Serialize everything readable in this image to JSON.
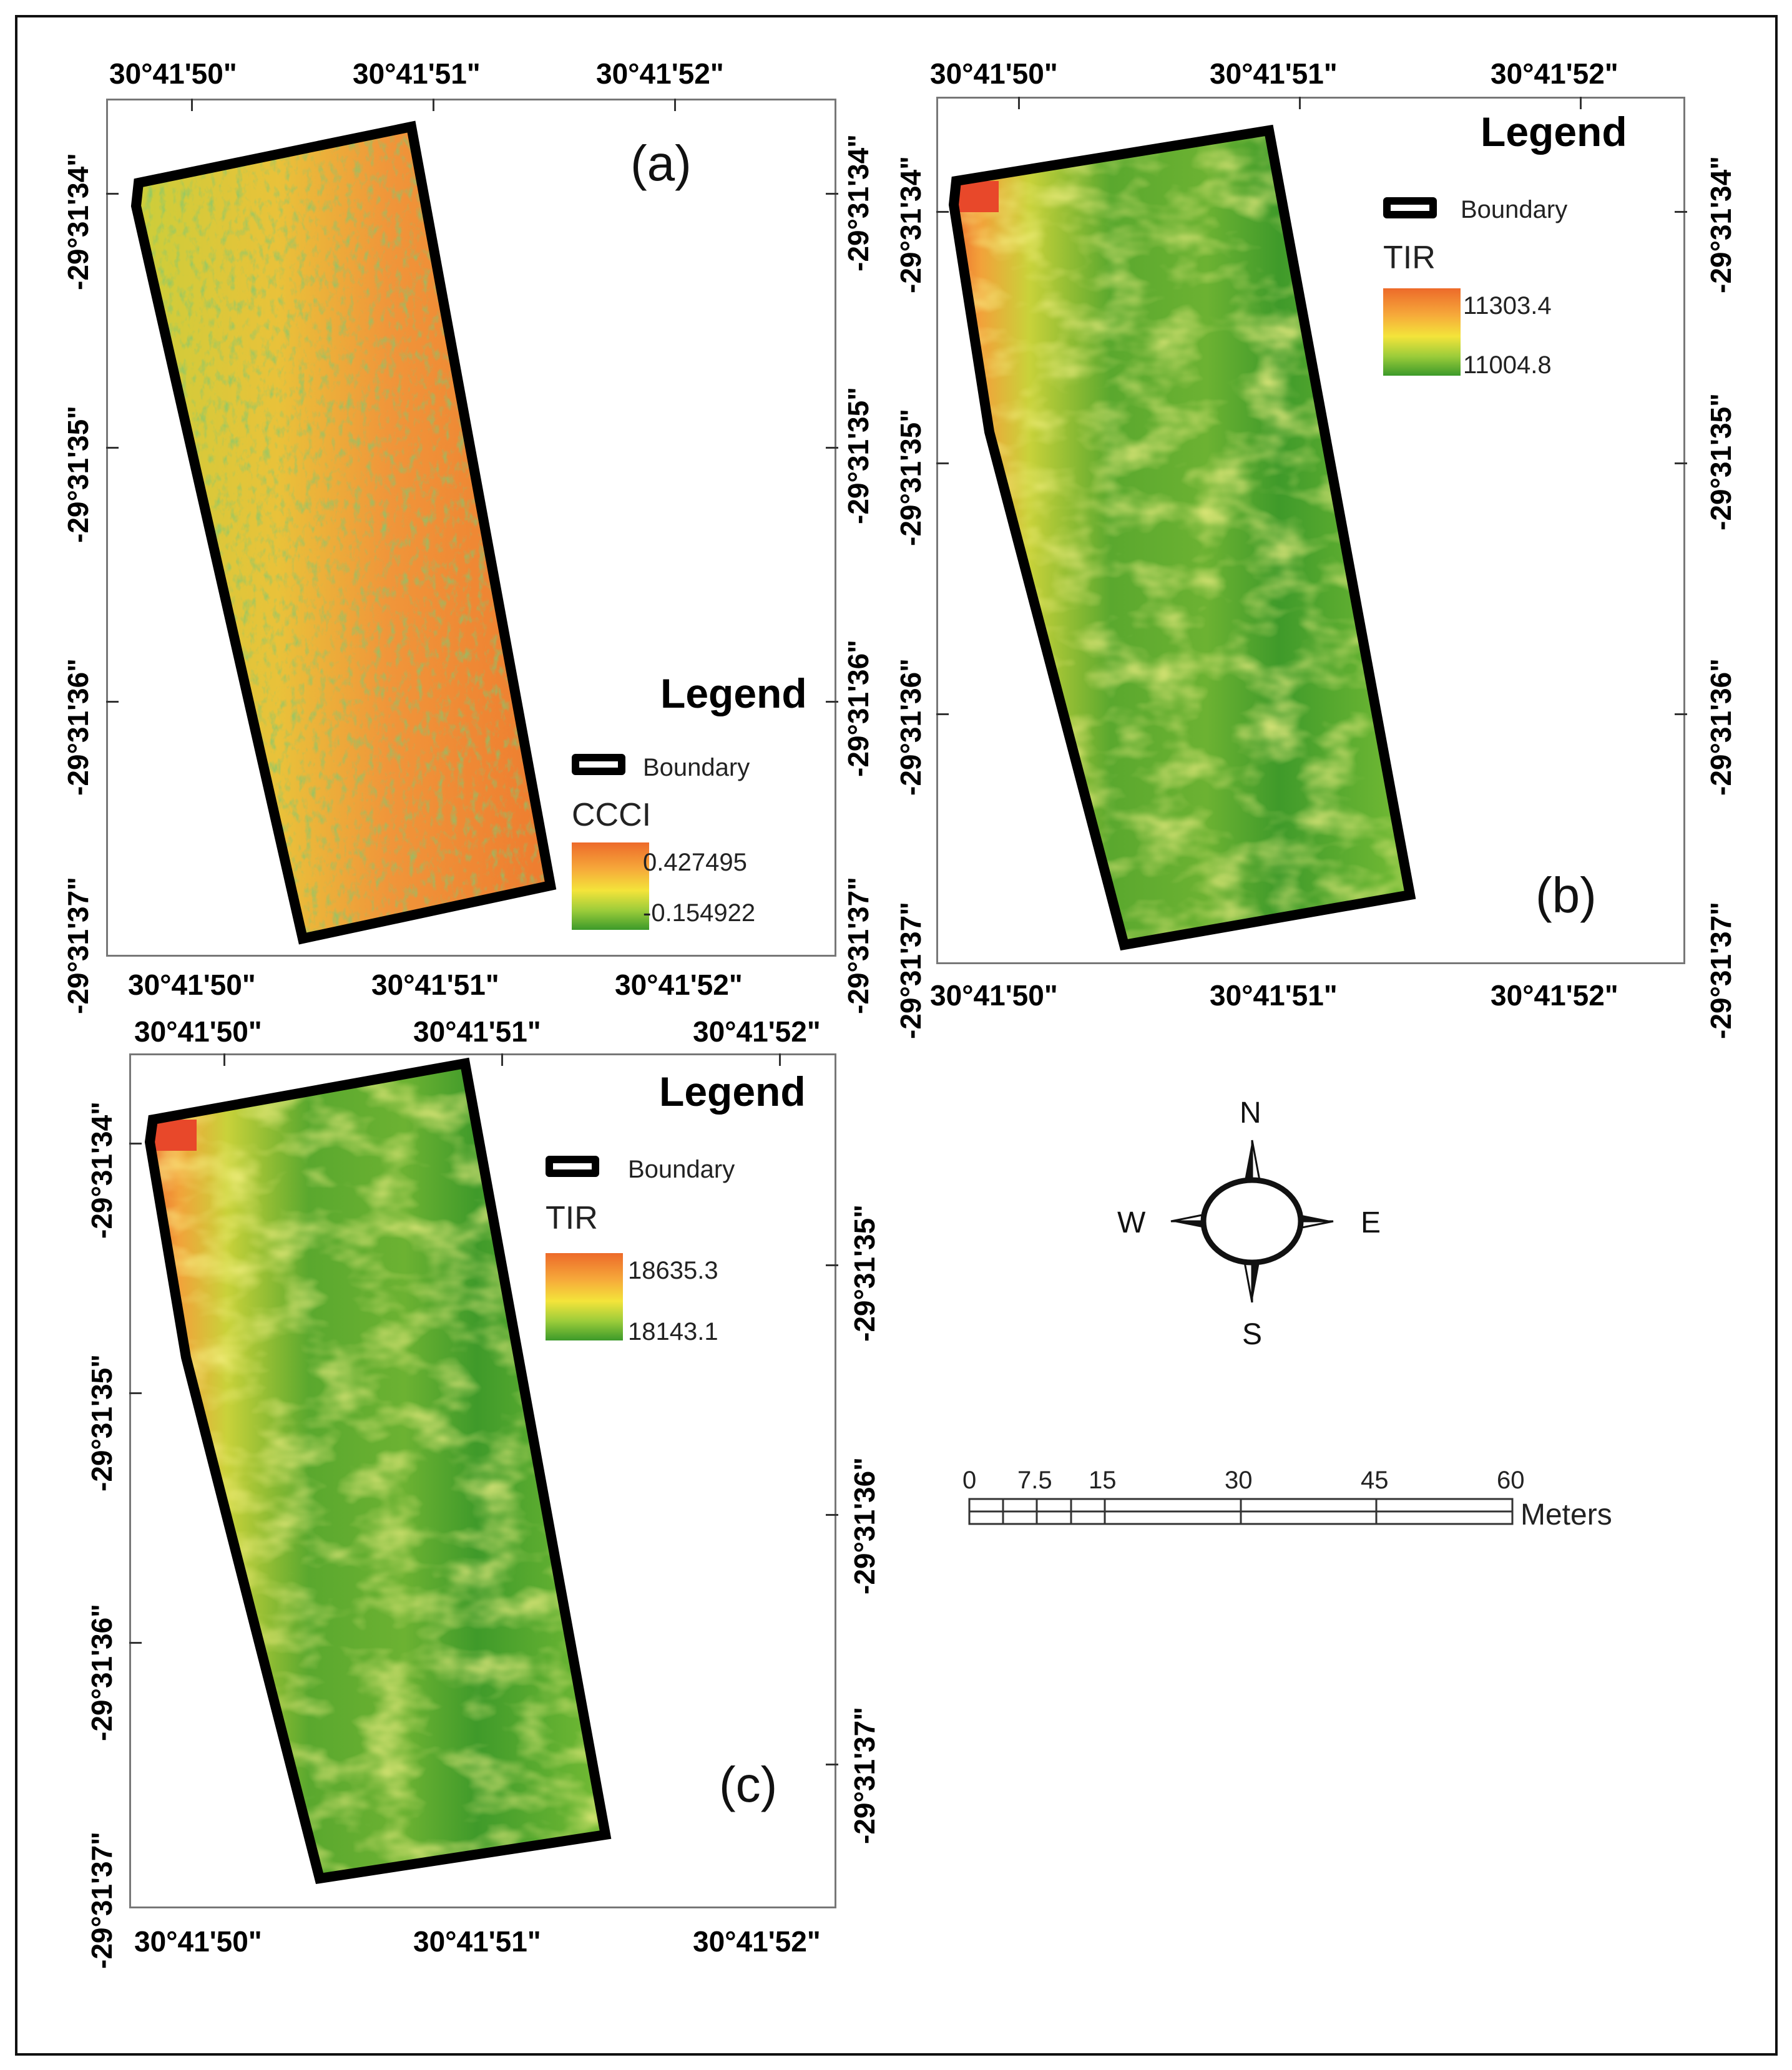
{
  "panels": {
    "a": {
      "label": "(a)",
      "top_coords": [
        "30°41'50\"",
        "30°41'51\"",
        "30°41'52\""
      ],
      "bottom_coords": [
        "30°41'50\"",
        "30°41'51\"",
        "30°41'52\""
      ],
      "left_coords": [
        "-29°31'34\"",
        "-29°31'35\"",
        "-29°31'36\"",
        "-29°31'37\""
      ],
      "right_coords": [
        "-29°31'34\"",
        "-29°31'35\"",
        "-29°31'36\"",
        "-29°31'37\""
      ],
      "legend": {
        "title": "Legend",
        "boundary": "Boundary",
        "variable": "CCCI",
        "max": "0.427495",
        "min": "-0.154922"
      }
    },
    "b": {
      "label": "(b)",
      "top_coords": [
        "30°41'50\"",
        "30°41'51\"",
        "30°41'52\""
      ],
      "bottom_coords": [
        "30°41'50\"",
        "30°41'51\"",
        "30°41'52\""
      ],
      "left_coords": [
        "-29°31'34\"",
        "-29°31'35\"",
        "-29°31'36\"",
        "-29°31'37\""
      ],
      "right_coords": [
        "-29°31'34\"",
        "-29°31'35\"",
        "-29°31'36\"",
        "-29°31'37\""
      ],
      "legend": {
        "title": "Legend",
        "boundary": "Boundary",
        "variable": "TIR",
        "max": "11303.4",
        "min": "11004.8"
      }
    },
    "c": {
      "label": "(c)",
      "top_coords": [
        "30°41'50\"",
        "30°41'51\"",
        "30°41'52\""
      ],
      "bottom_coords": [
        "30°41'50\"",
        "30°41'51\"",
        "30°41'52\""
      ],
      "left_coords": [
        "-29°31'34\"",
        "-29°31'35\"",
        "-29°31'36\"",
        "-29°31'37\""
      ],
      "right_coords": [
        "-29°31'35\"",
        "-29°31'36\"",
        "-29°31'37\""
      ],
      "legend": {
        "title": "Legend",
        "boundary": "Boundary",
        "variable": "TIR",
        "max": "18635.3",
        "min": "18143.1"
      }
    }
  },
  "compass": {
    "n": "N",
    "s": "S",
    "e": "E",
    "w": "W"
  },
  "scale_bar": {
    "labels": [
      "0",
      "7.5",
      "15",
      "30",
      "45",
      "60"
    ],
    "unit": "Meters"
  },
  "colors": {
    "high": "#ed6a2a",
    "mid": "#f4e43a",
    "low": "#3c9a2a",
    "boundary": "#000000"
  }
}
